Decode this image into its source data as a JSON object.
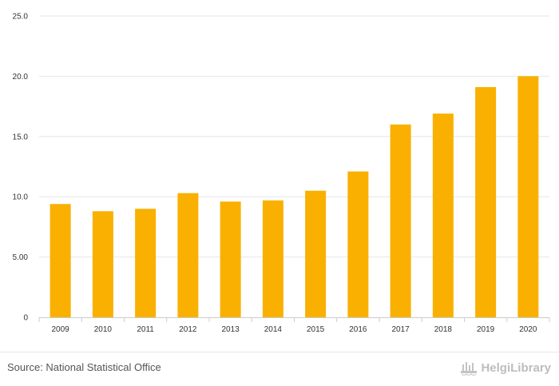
{
  "chart_data": {
    "type": "bar",
    "title": "",
    "xlabel": "",
    "ylabel": "",
    "categories": [
      "2009",
      "2010",
      "2011",
      "2012",
      "2013",
      "2014",
      "2015",
      "2016",
      "2017",
      "2018",
      "2019",
      "2020"
    ],
    "values": [
      9.4,
      8.8,
      9.0,
      10.3,
      9.6,
      9.7,
      10.5,
      12.1,
      16.0,
      16.9,
      19.1,
      20.0
    ],
    "ylim": [
      0,
      25
    ],
    "yticks": [
      0,
      5,
      10,
      15,
      20,
      25
    ],
    "ytick_labels": [
      "0",
      "5.00",
      "10.0",
      "15.0",
      "20.0",
      "25.0"
    ],
    "grid": true,
    "bar_color": "#f9b000"
  },
  "footer": {
    "source": "Source: National Statistical Office",
    "logo_text": "HelgiLibrary",
    "logo_icon": "helgi-library-logo-icon"
  }
}
